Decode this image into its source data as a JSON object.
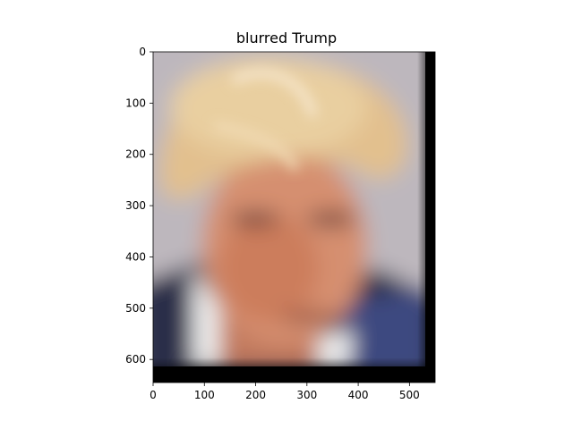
{
  "title": "blurred Trump",
  "chart_data": {
    "type": "image",
    "title": "blurred Trump",
    "xlabel": "",
    "ylabel": "",
    "xlim": [
      0,
      550
    ],
    "ylim": [
      645,
      0
    ],
    "x_ticks": [
      0,
      100,
      200,
      300,
      400,
      500
    ],
    "y_ticks": [
      0,
      100,
      200,
      300,
      400,
      500,
      600
    ],
    "grid": false
  }
}
